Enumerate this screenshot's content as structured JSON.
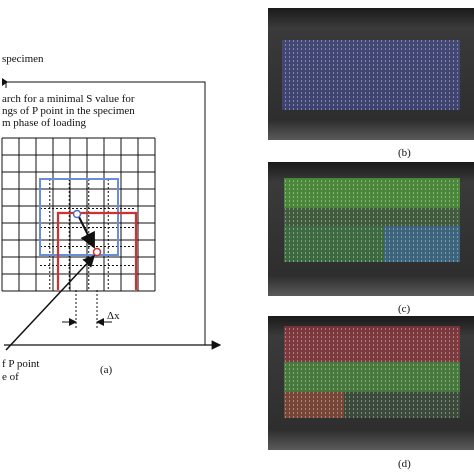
{
  "figure": {
    "left_panel": {
      "specimen_label": "specimen",
      "search_note": [
        "arch for a minimal S value for",
        "ngs of P point in the specimen",
        "m phase of loading"
      ],
      "dx_label": "Δx",
      "point_note": [
        "f P point",
        "e of"
      ],
      "caption": "(a)"
    },
    "right_panels": [
      {
        "caption": "(b)"
      },
      {
        "caption": "(c)"
      },
      {
        "caption": "(d)"
      }
    ]
  }
}
